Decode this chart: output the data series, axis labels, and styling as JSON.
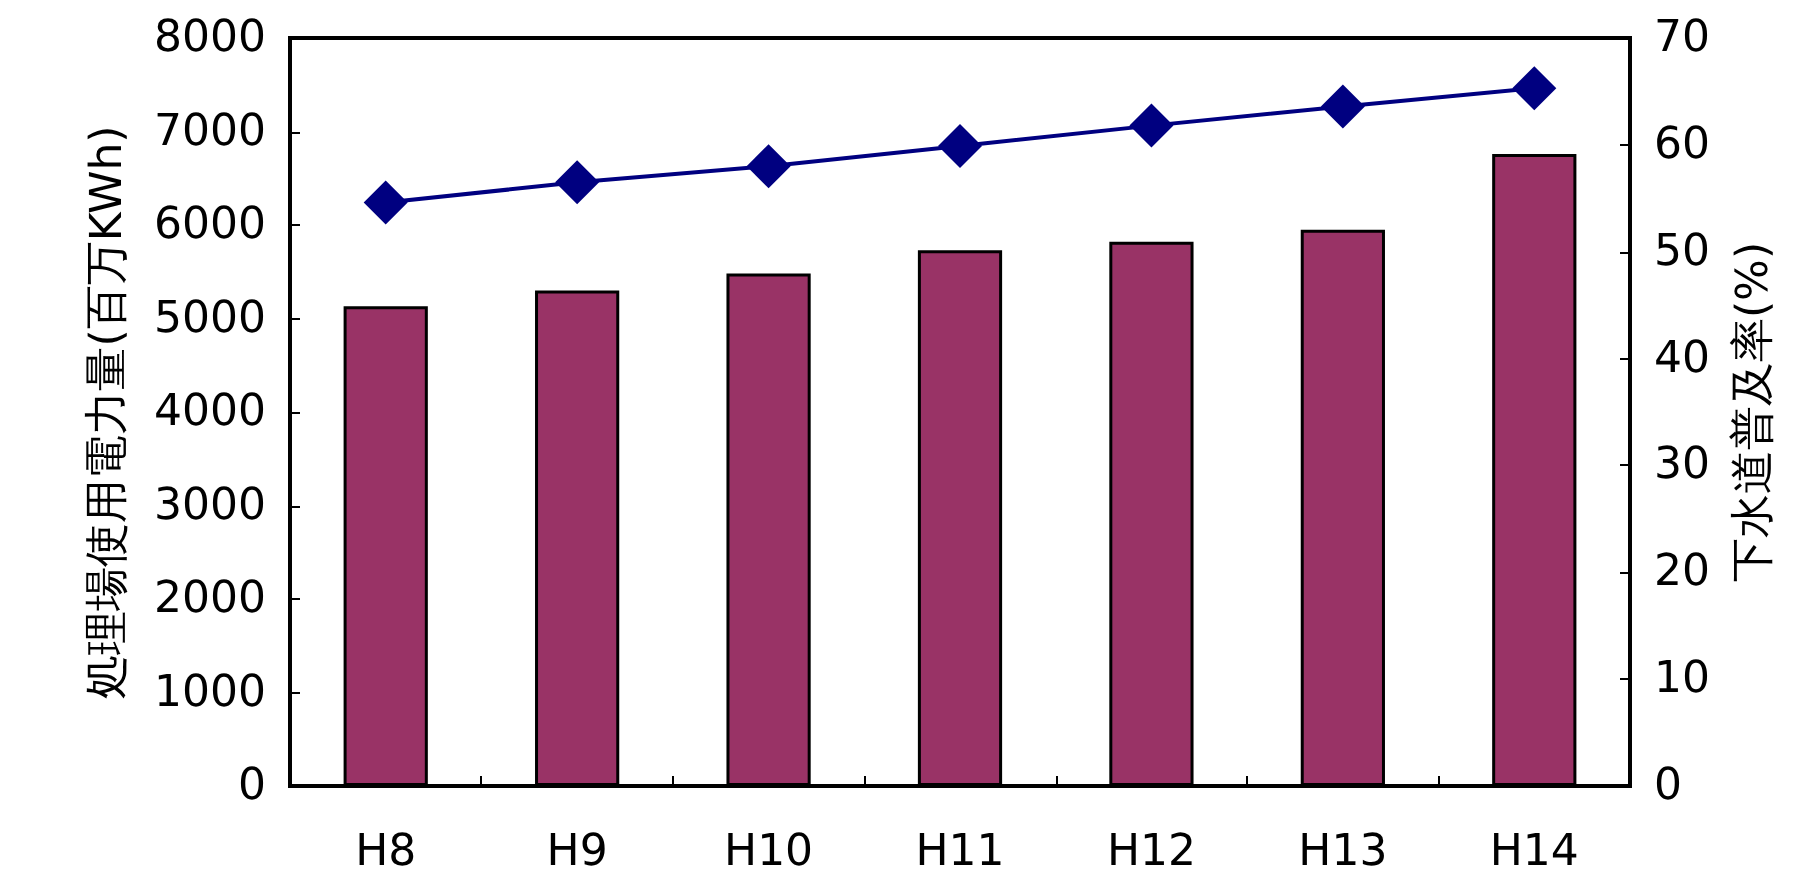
{
  "chart_data": {
    "type": "bar",
    "categories": [
      "H8",
      "H9",
      "H10",
      "H11",
      "H12",
      "H13",
      "H14"
    ],
    "ylabel": "処理場使用電力量(百万KWh)",
    "y2label": "下水道普及率(%)",
    "ylim": [
      0,
      8000
    ],
    "yticks": [
      0,
      1000,
      2000,
      3000,
      4000,
      5000,
      6000,
      7000,
      8000
    ],
    "y2lim": [
      0,
      70
    ],
    "y2ticks": [
      0,
      10,
      20,
      30,
      40,
      50,
      60,
      70
    ],
    "grid": false,
    "series": [
      {
        "color": "#993366",
        "values": [
          5130,
          5300,
          5480,
          5730,
          5820,
          5950,
          6760
        ]
      },
      {
        "type": "line",
        "axis": "y2",
        "color": "#000080",
        "marker": "diamond",
        "line_style": "solid",
        "values": [
          54.6,
          56.5,
          58.0,
          59.9,
          61.8,
          63.6,
          65.3
        ]
      }
    ]
  }
}
